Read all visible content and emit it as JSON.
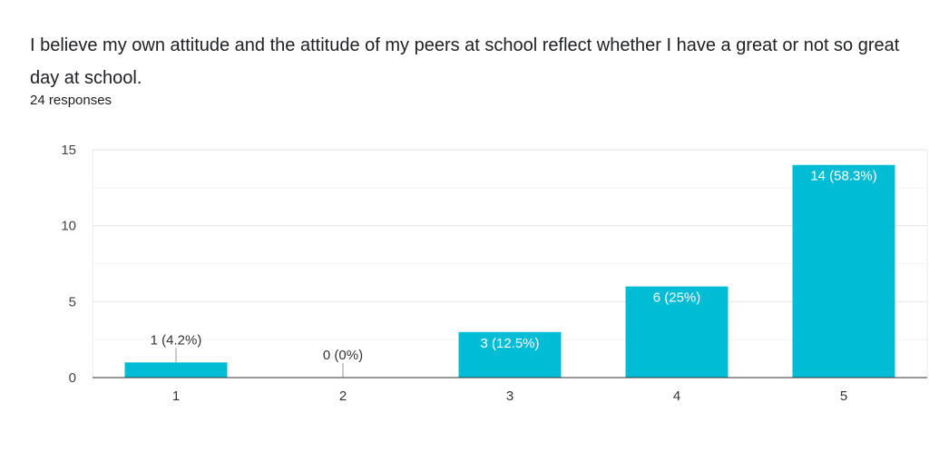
{
  "chart_data": {
    "type": "bar",
    "title": "I believe my own attitude and the attitude of my peers at school reflect whether I have a great or not so great day at school.",
    "subtitle": "24 responses",
    "categories": [
      "1",
      "2",
      "3",
      "4",
      "5"
    ],
    "values": [
      1,
      0,
      3,
      6,
      14
    ],
    "data_labels": [
      "1 (4.2%)",
      "0 (0%)",
      "3 (12.5%)",
      "6 (25%)",
      "14 (58.3%)"
    ],
    "xlabel": "",
    "ylabel": "",
    "ylim": [
      0,
      15
    ],
    "yticks": [
      "0",
      "5",
      "10",
      "15"
    ],
    "grid": true,
    "legend": "none",
    "bar_color": "#00bcd4"
  }
}
